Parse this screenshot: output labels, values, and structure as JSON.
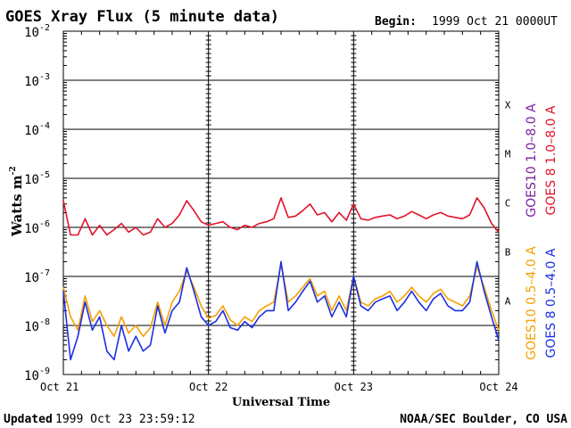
{
  "header": {
    "title": "GOES Xray Flux (5 minute data)",
    "begin_label": "Begin:",
    "begin_value": "1999 Oct 21 0000UT"
  },
  "footer": {
    "updated_label": "Updated",
    "updated_value": "1999 Oct 23 23:59:12",
    "credit": "NOAA/SEC Boulder, CO USA"
  },
  "chart_data": {
    "type": "line",
    "title": "GOES Xray Flux (5 minute data)",
    "xlabel": "Universal Time",
    "ylabel_main": "Watts m",
    "ylabel_sup": "-2",
    "x_ticks": [
      "Oct 21",
      "Oct 22",
      "Oct 23",
      "Oct 24"
    ],
    "x_range_days": [
      0,
      3
    ],
    "y_scale": "log",
    "y_exponents": [
      -2,
      -3,
      -4,
      -5,
      -6,
      -7,
      -8,
      -9
    ],
    "y_tick_base": "10",
    "ylim": [
      1e-09,
      0.01
    ],
    "flare_classes": [
      {
        "label": "X",
        "level": 0.0001
      },
      {
        "label": "M",
        "level": 1e-05
      },
      {
        "label": "C",
        "level": 1e-06
      },
      {
        "label": "B",
        "level": 1e-07
      },
      {
        "label": "A",
        "level": 1e-08
      }
    ],
    "grid": true,
    "legend_right": [
      {
        "text": "GOES10 1.0–8.0 A",
        "color": "#7b1fa2"
      },
      {
        "text": "GOES 8 1.0–8.0 A",
        "color": "#e0142a"
      },
      {
        "text": "GOES10 0.5–4.0 A",
        "color": "#f5a000"
      },
      {
        "text": "GOES 8 0.5–4.0 A",
        "color": "#1c2fe6"
      }
    ],
    "series": [
      {
        "name": "GOES 8 1.0–8.0 A",
        "color": "#e0142a",
        "x_days": [
          0.0,
          0.05,
          0.1,
          0.15,
          0.2,
          0.25,
          0.3,
          0.35,
          0.4,
          0.45,
          0.5,
          0.55,
          0.6,
          0.65,
          0.7,
          0.75,
          0.8,
          0.85,
          0.9,
          0.95,
          1.0,
          1.05,
          1.1,
          1.15,
          1.2,
          1.25,
          1.3,
          1.35,
          1.4,
          1.45,
          1.5,
          1.55,
          1.6,
          1.65,
          1.7,
          1.75,
          1.8,
          1.85,
          1.9,
          1.95,
          2.0,
          2.05,
          2.1,
          2.15,
          2.2,
          2.25,
          2.3,
          2.35,
          2.4,
          2.45,
          2.5,
          2.55,
          2.6,
          2.65,
          2.7,
          2.75,
          2.8,
          2.85,
          2.9,
          2.95,
          3.0
        ],
        "y": [
          3.5e-06,
          7e-07,
          7e-07,
          1.5e-06,
          7e-07,
          1.1e-06,
          7e-07,
          9e-07,
          1.2e-06,
          8e-07,
          1e-06,
          7e-07,
          8e-07,
          1.5e-06,
          1e-06,
          1.2e-06,
          1.8e-06,
          3.5e-06,
          2.2e-06,
          1.3e-06,
          1.1e-06,
          1.2e-06,
          1.3e-06,
          1e-06,
          9e-07,
          1.1e-06,
          1e-06,
          1.2e-06,
          1.3e-06,
          1.5e-06,
          4e-06,
          1.6e-06,
          1.7e-06,
          2.2e-06,
          3e-06,
          1.8e-06,
          2e-06,
          1.3e-06,
          2e-06,
          1.4e-06,
          3e-06,
          1.5e-06,
          1.4e-06,
          1.6e-06,
          1.7e-06,
          1.8e-06,
          1.5e-06,
          1.7e-06,
          2.1e-06,
          1.8e-06,
          1.5e-06,
          1.8e-06,
          2e-06,
          1.7e-06,
          1.6e-06,
          1.5e-06,
          1.8e-06,
          4e-06,
          2.5e-06,
          1.2e-06,
          8e-07
        ]
      },
      {
        "name": "GOES10 1.0–8.0 A",
        "color": "#7b1fa2",
        "x_days": [],
        "y": []
      },
      {
        "name": "GOES10 0.5–4.0 A",
        "color": "#f5a000",
        "x_days": [
          0.0,
          0.05,
          0.1,
          0.15,
          0.2,
          0.25,
          0.3,
          0.35,
          0.4,
          0.45,
          0.5,
          0.55,
          0.6,
          0.65,
          0.7,
          0.75,
          0.8,
          0.85,
          0.9,
          0.95,
          1.0,
          1.05,
          1.1,
          1.15,
          1.2,
          1.25,
          1.3,
          1.35,
          1.4,
          1.45,
          1.5,
          1.55,
          1.6,
          1.65,
          1.7,
          1.75,
          1.8,
          1.85,
          1.9,
          1.95,
          2.0,
          2.05,
          2.1,
          2.15,
          2.2,
          2.25,
          2.3,
          2.35,
          2.4,
          2.45,
          2.5,
          2.55,
          2.6,
          2.65,
          2.7,
          2.75,
          2.8,
          2.85,
          2.9,
          2.95,
          3.0
        ],
        "y": [
          6e-08,
          1.5e-08,
          8e-09,
          4e-08,
          1.2e-08,
          2e-08,
          1e-08,
          6e-09,
          1.5e-08,
          7e-09,
          1e-08,
          6e-09,
          9e-09,
          3e-08,
          1e-08,
          3e-08,
          5e-08,
          1.3e-07,
          6e-08,
          2.5e-08,
          1.4e-08,
          1.6e-08,
          2.5e-08,
          1.3e-08,
          1e-08,
          1.5e-08,
          1.2e-08,
          2e-08,
          2.5e-08,
          3e-08,
          1.8e-07,
          3e-08,
          4e-08,
          6e-08,
          9e-08,
          4e-08,
          5e-08,
          2e-08,
          4e-08,
          2e-08,
          1e-07,
          3e-08,
          2.5e-08,
          3.5e-08,
          4e-08,
          5e-08,
          3e-08,
          4e-08,
          6e-08,
          4e-08,
          3e-08,
          4.5e-08,
          5.5e-08,
          3.5e-08,
          3e-08,
          2.5e-08,
          4e-08,
          1.6e-07,
          6e-08,
          2e-08,
          8e-09
        ]
      },
      {
        "name": "GOES 8 0.5–4.0 A",
        "color": "#1c2fe6",
        "x_days": [
          0.0,
          0.05,
          0.1,
          0.15,
          0.2,
          0.25,
          0.3,
          0.35,
          0.4,
          0.45,
          0.5,
          0.55,
          0.6,
          0.65,
          0.7,
          0.75,
          0.8,
          0.85,
          0.9,
          0.95,
          1.0,
          1.05,
          1.1,
          1.15,
          1.2,
          1.25,
          1.3,
          1.35,
          1.4,
          1.45,
          1.5,
          1.55,
          1.6,
          1.65,
          1.7,
          1.75,
          1.8,
          1.85,
          1.9,
          1.95,
          2.0,
          2.05,
          2.1,
          2.15,
          2.2,
          2.25,
          2.3,
          2.35,
          2.4,
          2.45,
          2.5,
          2.55,
          2.6,
          2.65,
          2.7,
          2.75,
          2.8,
          2.85,
          2.9,
          2.95,
          3.0
        ],
        "y": [
          5e-08,
          2e-09,
          6e-09,
          3e-08,
          8e-09,
          1.5e-08,
          3e-09,
          2e-09,
          1e-08,
          3e-09,
          6e-09,
          3e-09,
          4e-09,
          2.5e-08,
          7e-09,
          2e-08,
          3e-08,
          1.5e-07,
          5e-08,
          1.5e-08,
          1e-08,
          1.2e-08,
          2e-08,
          9e-09,
          8e-09,
          1.2e-08,
          9e-09,
          1.5e-08,
          2e-08,
          2e-08,
          2e-07,
          2e-08,
          3e-08,
          5e-08,
          8e-08,
          3e-08,
          4e-08,
          1.5e-08,
          3e-08,
          1.5e-08,
          1e-07,
          2.5e-08,
          2e-08,
          3e-08,
          3.5e-08,
          4e-08,
          2e-08,
          3e-08,
          5e-08,
          3e-08,
          2e-08,
          3.5e-08,
          4.5e-08,
          2.5e-08,
          2e-08,
          2e-08,
          3e-08,
          2e-07,
          5e-08,
          1.5e-08,
          5e-09
        ]
      }
    ]
  }
}
